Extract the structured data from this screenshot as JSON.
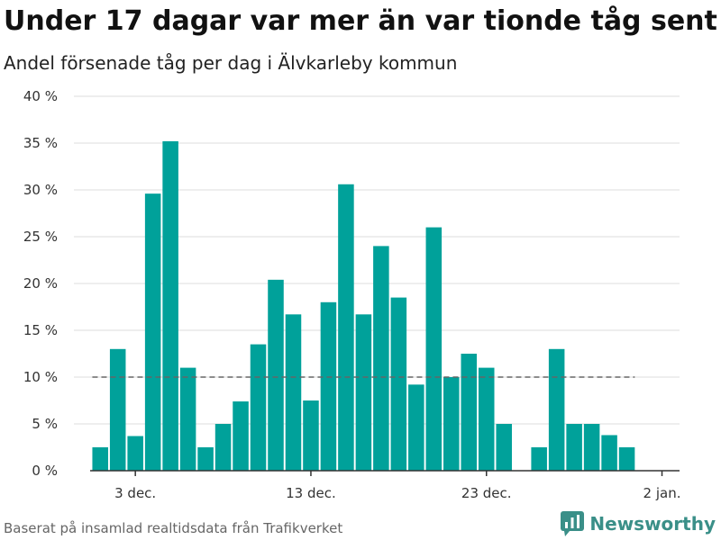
{
  "header": {
    "title": "Under 17 dagar var mer än var tionde tåg sent",
    "subtitle": "Andel försenade tåg per dag i Älvkarleby kommun"
  },
  "footer": {
    "source": "Baserat på insamlad realtidsdata från Trafikverket",
    "brand": "Newsworthy"
  },
  "colors": {
    "bar": "#00a19a",
    "reference_line": "#666666",
    "brand": "#3a8f88"
  },
  "chart_data": {
    "type": "bar",
    "title": "Under 17 dagar var mer än var tionde tåg sent",
    "subtitle": "Andel försenade tåg per dag i Älvkarleby kommun",
    "xlabel": "",
    "ylabel": "",
    "ylim": [
      0,
      40
    ],
    "y_ticks": [
      0,
      5,
      10,
      15,
      20,
      25,
      30,
      35,
      40
    ],
    "y_tick_labels": [
      "0 %",
      "5 %",
      "10 %",
      "15 %",
      "20 %",
      "25 %",
      "30 %",
      "35 %",
      "40 %"
    ],
    "x_ticks": [
      {
        "day": 3,
        "label": "3 dec."
      },
      {
        "day": 13,
        "label": "13 dec."
      },
      {
        "day": 23,
        "label": "23 dec."
      },
      {
        "day": 33,
        "label": "2 jan."
      }
    ],
    "x": [
      1,
      2,
      3,
      4,
      5,
      6,
      7,
      8,
      9,
      10,
      11,
      12,
      13,
      14,
      15,
      16,
      17,
      18,
      19,
      20,
      21,
      22,
      23,
      24,
      25,
      26,
      27,
      28,
      29,
      30,
      31
    ],
    "values": [
      2.5,
      13,
      3.7,
      29.6,
      35.2,
      11,
      2.5,
      5,
      7.4,
      13.5,
      20.4,
      16.7,
      7.5,
      18,
      30.6,
      16.7,
      24,
      18.5,
      9.2,
      26,
      10,
      12.5,
      11,
      5,
      0,
      2.5,
      13,
      5,
      5,
      3.8,
      2.5
    ],
    "reference_line": 10,
    "grid": true,
    "legend": "none"
  }
}
